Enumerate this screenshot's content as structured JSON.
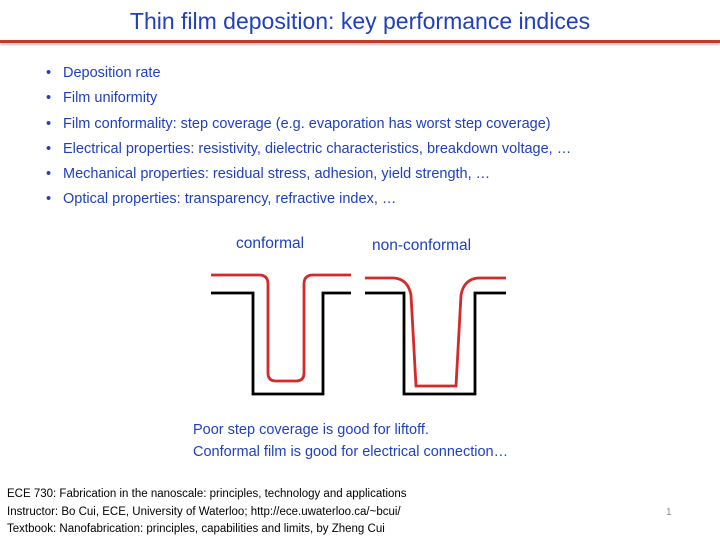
{
  "title": "Thin film deposition: key performance indices",
  "bullets": [
    "Deposition rate",
    "Film uniformity",
    "Film conformality: step coverage (e.g. evaporation has worst step coverage)",
    "Electrical properties: resistivity, dielectric characteristics, breakdown voltage, …",
    "Mechanical properties: residual stress, adhesion, yield strength, …",
    "Optical properties: transparency, refractive index, …"
  ],
  "diagram": {
    "conformal_label": "conformal",
    "nonconformal_label": "non-conformal",
    "colors": {
      "substrate": "#000000",
      "film": "#d42a2a"
    }
  },
  "notes": [
    "Poor step coverage is good for liftoff.",
    "Conformal film is good for electrical connection…"
  ],
  "footer": [
    "ECE 730: Fabrication in the nanoscale: principles, technology and applications",
    "Instructor: Bo Cui, ECE, University of Waterloo; http://ece.uwaterloo.ca/~bcui/",
    "Textbook: Nanofabrication: principles, capabilities and limits, by Zheng Cui"
  ],
  "page_number": "1",
  "colors": {
    "text_blue": "#1f3fbf",
    "rule_red": "#c0392b"
  }
}
